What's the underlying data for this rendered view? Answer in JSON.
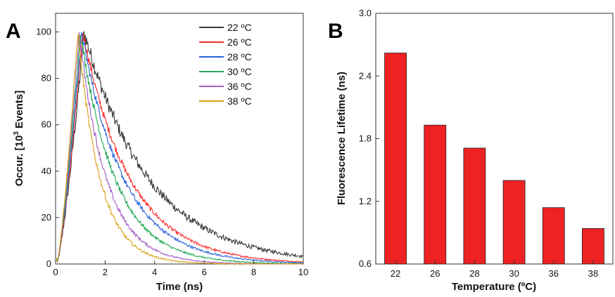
{
  "chart_data": [
    {
      "panel": "A",
      "type": "line",
      "xlabel": "Time (ns)",
      "ylabel_prefix": "Occur. [10",
      "ylabel_sup": "3",
      "ylabel_suffix": " Events]",
      "xlim": [
        0,
        10
      ],
      "ylim": [
        0,
        108
      ],
      "xticks": [
        0,
        2,
        4,
        6,
        8,
        10
      ],
      "yticks": [
        0,
        20,
        40,
        60,
        80,
        100
      ],
      "grid": false,
      "legend_position": "top-right",
      "series": [
        {
          "name": "22 ºC",
          "color": "#3a3a3a",
          "peak_x": 1.15,
          "tau": 2.6
        },
        {
          "name": "26 ºC",
          "color": "#ff2a2a",
          "peak_x": 1.1,
          "tau": 1.9
        },
        {
          "name": "28 ºC",
          "color": "#2a63d8",
          "peak_x": 1.05,
          "tau": 1.7
        },
        {
          "name": "30 ºC",
          "color": "#22aa55",
          "peak_x": 1.0,
          "tau": 1.4
        },
        {
          "name": "36 ºC",
          "color": "#a35ec8",
          "peak_x": 0.95,
          "tau": 1.1
        },
        {
          "name": "38 ºC",
          "color": "#d9a012",
          "peak_x": 0.9,
          "tau": 0.9
        }
      ],
      "peak_value": 100
    },
    {
      "panel": "B",
      "type": "bar",
      "xlabel": "Temperature (ºC)",
      "ylabel": "Fluorescence Lifetime (ns)",
      "categories": [
        "22",
        "26",
        "28",
        "30",
        "36",
        "38"
      ],
      "values": [
        2.62,
        1.93,
        1.71,
        1.4,
        1.14,
        0.94
      ],
      "ylim": [
        0.6,
        3.0
      ],
      "yticks": [
        "0.6",
        "1.2",
        "1.8",
        "2.4",
        "3.0"
      ],
      "bar_color": "#ee2222",
      "grid": false
    }
  ]
}
